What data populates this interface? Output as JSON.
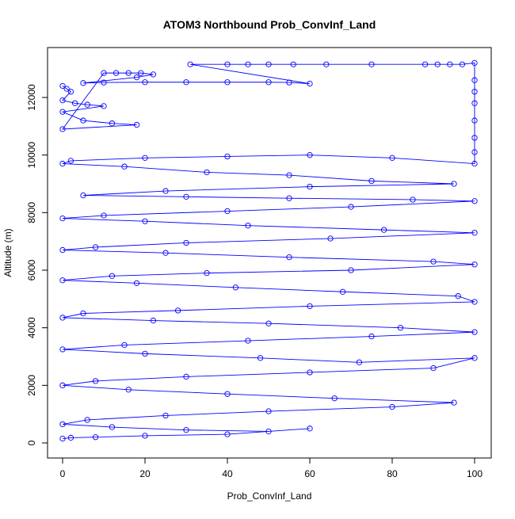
{
  "chart_data": {
    "type": "line",
    "title": "ATOM3 Northbound Prob_ConvInf_Land",
    "xlabel": "Prob_ConvInf_Land",
    "ylabel": "Altitude (m)",
    "xlim": [
      0,
      100
    ],
    "ylim": [
      0,
      13200
    ],
    "xticks": [
      0,
      20,
      40,
      60,
      80,
      100
    ],
    "yticks": [
      0,
      2000,
      4000,
      6000,
      8000,
      10000,
      12000
    ],
    "grid": false,
    "markers": "open-circle",
    "color": "#0000FF",
    "series": [
      {
        "name": "Prob_ConvInf_Land",
        "points": [
          [
            0,
            12400
          ],
          [
            1,
            12300
          ],
          [
            2,
            12200
          ],
          [
            0,
            11900
          ],
          [
            3,
            11800
          ],
          [
            6,
            11750
          ],
          [
            10,
            11700
          ],
          [
            0,
            11500
          ],
          [
            5,
            11200
          ],
          [
            12,
            11100
          ],
          [
            18,
            11050
          ],
          [
            0,
            10900
          ],
          [
            10,
            12850
          ],
          [
            13,
            12850
          ],
          [
            16,
            12850
          ],
          [
            19,
            12850
          ],
          [
            22,
            12800
          ],
          [
            18,
            12700
          ],
          [
            5,
            12500
          ],
          [
            10,
            12520
          ],
          [
            20,
            12530
          ],
          [
            30,
            12530
          ],
          [
            40,
            12530
          ],
          [
            50,
            12530
          ],
          [
            55,
            12520
          ],
          [
            60,
            12480
          ],
          [
            31,
            13150
          ],
          [
            40,
            13150
          ],
          [
            45,
            13150
          ],
          [
            50,
            13150
          ],
          [
            56,
            13150
          ],
          [
            64,
            13150
          ],
          [
            75,
            13150
          ],
          [
            88,
            13150
          ],
          [
            91,
            13150
          ],
          [
            94,
            13150
          ],
          [
            97,
            13150
          ],
          [
            100,
            13200
          ],
          [
            100,
            12600
          ],
          [
            100,
            12200
          ],
          [
            100,
            11800
          ],
          [
            100,
            11200
          ],
          [
            100,
            10600
          ],
          [
            100,
            10100
          ],
          [
            100,
            9700
          ],
          [
            80,
            9900
          ],
          [
            60,
            10000
          ],
          [
            40,
            9950
          ],
          [
            20,
            9900
          ],
          [
            2,
            9800
          ],
          [
            0,
            9700
          ],
          [
            15,
            9600
          ],
          [
            35,
            9400
          ],
          [
            55,
            9300
          ],
          [
            75,
            9100
          ],
          [
            95,
            9000
          ],
          [
            60,
            8900
          ],
          [
            25,
            8750
          ],
          [
            5,
            8600
          ],
          [
            30,
            8550
          ],
          [
            55,
            8500
          ],
          [
            85,
            8450
          ],
          [
            100,
            8400
          ],
          [
            70,
            8200
          ],
          [
            40,
            8050
          ],
          [
            10,
            7900
          ],
          [
            0,
            7800
          ],
          [
            20,
            7700
          ],
          [
            45,
            7550
          ],
          [
            78,
            7400
          ],
          [
            100,
            7300
          ],
          [
            65,
            7100
          ],
          [
            30,
            6950
          ],
          [
            8,
            6800
          ],
          [
            0,
            6700
          ],
          [
            25,
            6600
          ],
          [
            55,
            6450
          ],
          [
            90,
            6300
          ],
          [
            100,
            6200
          ],
          [
            70,
            6000
          ],
          [
            35,
            5900
          ],
          [
            12,
            5800
          ],
          [
            0,
            5650
          ],
          [
            18,
            5550
          ],
          [
            42,
            5400
          ],
          [
            68,
            5250
          ],
          [
            96,
            5100
          ],
          [
            100,
            4900
          ],
          [
            60,
            4750
          ],
          [
            28,
            4600
          ],
          [
            5,
            4500
          ],
          [
            0,
            4350
          ],
          [
            22,
            4250
          ],
          [
            50,
            4150
          ],
          [
            82,
            4000
          ],
          [
            100,
            3850
          ],
          [
            75,
            3700
          ],
          [
            45,
            3550
          ],
          [
            15,
            3400
          ],
          [
            0,
            3250
          ],
          [
            20,
            3100
          ],
          [
            48,
            2950
          ],
          [
            72,
            2800
          ],
          [
            100,
            2950
          ],
          [
            90,
            2600
          ],
          [
            60,
            2450
          ],
          [
            30,
            2300
          ],
          [
            8,
            2150
          ],
          [
            0,
            2000
          ],
          [
            16,
            1850
          ],
          [
            40,
            1700
          ],
          [
            66,
            1550
          ],
          [
            95,
            1400
          ],
          [
            80,
            1250
          ],
          [
            50,
            1100
          ],
          [
            25,
            950
          ],
          [
            6,
            800
          ],
          [
            0,
            650
          ],
          [
            12,
            550
          ],
          [
            30,
            450
          ],
          [
            50,
            400
          ],
          [
            60,
            500
          ],
          [
            40,
            300
          ],
          [
            20,
            250
          ],
          [
            8,
            200
          ],
          [
            2,
            180
          ],
          [
            0,
            150
          ]
        ]
      }
    ]
  }
}
